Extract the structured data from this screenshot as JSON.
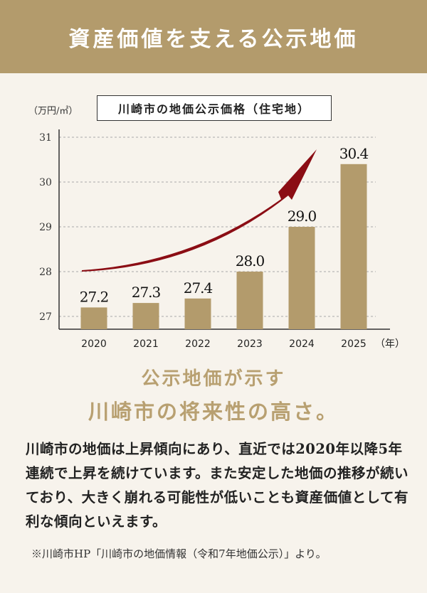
{
  "banner": {
    "title": "資産価値を支える公示地価"
  },
  "chart_data": {
    "type": "bar",
    "title": "川崎市の地価公示価格（住宅地）",
    "ylabel": "（万円/㎡）",
    "xlabel": "（年）",
    "categories": [
      "2020",
      "2021",
      "2022",
      "2023",
      "2024",
      "2025"
    ],
    "values": [
      27.2,
      27.3,
      27.4,
      28.0,
      29.0,
      30.4
    ],
    "value_labels": [
      "27.2",
      "27.3",
      "27.4",
      "28.0",
      "29.0",
      "30.4"
    ],
    "yticks": [
      "27",
      "28",
      "29",
      "30",
      "31"
    ],
    "ylim": [
      26.7,
      31
    ],
    "grid": true,
    "annotation": "upward trend arrow",
    "colors": {
      "bar": "#b39b6c",
      "arrow": "#8b0d14",
      "grid": "#aaaaaa",
      "axis": "#333333"
    }
  },
  "headline": {
    "line1": "公示地価が示す",
    "line2": "川崎市の将来性の高さ。"
  },
  "body": {
    "text": "川崎市の地価は上昇傾向にあり、直近では2020年以降5年連続で上昇を続けています。また安定した地価の推移が続いており、大きく崩れる可能性が低いことも資産価値として有利な傾向といえます。"
  },
  "source": {
    "text": "※川崎市HP「川崎市の地価情報（令和7年地価公示）」より。"
  }
}
